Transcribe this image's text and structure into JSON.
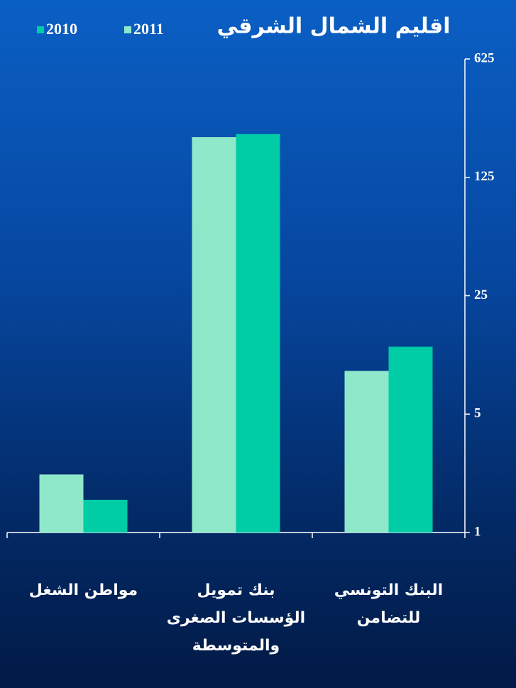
{
  "chart_data": {
    "type": "bar",
    "title": "اقليم الشمال الشرقي",
    "categories": [
      "البنك التونسي للتضامن",
      "بنك تمويل الؤسسات الصغرى والمتوسطة",
      "مواطن الشغل"
    ],
    "series": [
      {
        "name": "2010",
        "color": "#00cca6",
        "values": [
          12.5,
          225,
          1.56
        ]
      },
      {
        "name": "2011",
        "color": "#8ee8c9",
        "values": [
          9,
          216,
          2.2
        ]
      }
    ],
    "ylim": [
      1,
      625
    ],
    "yticks": [
      1,
      5,
      25,
      125,
      625
    ],
    "yscale": "log",
    "yaxis_position": "right",
    "grid": false
  }
}
